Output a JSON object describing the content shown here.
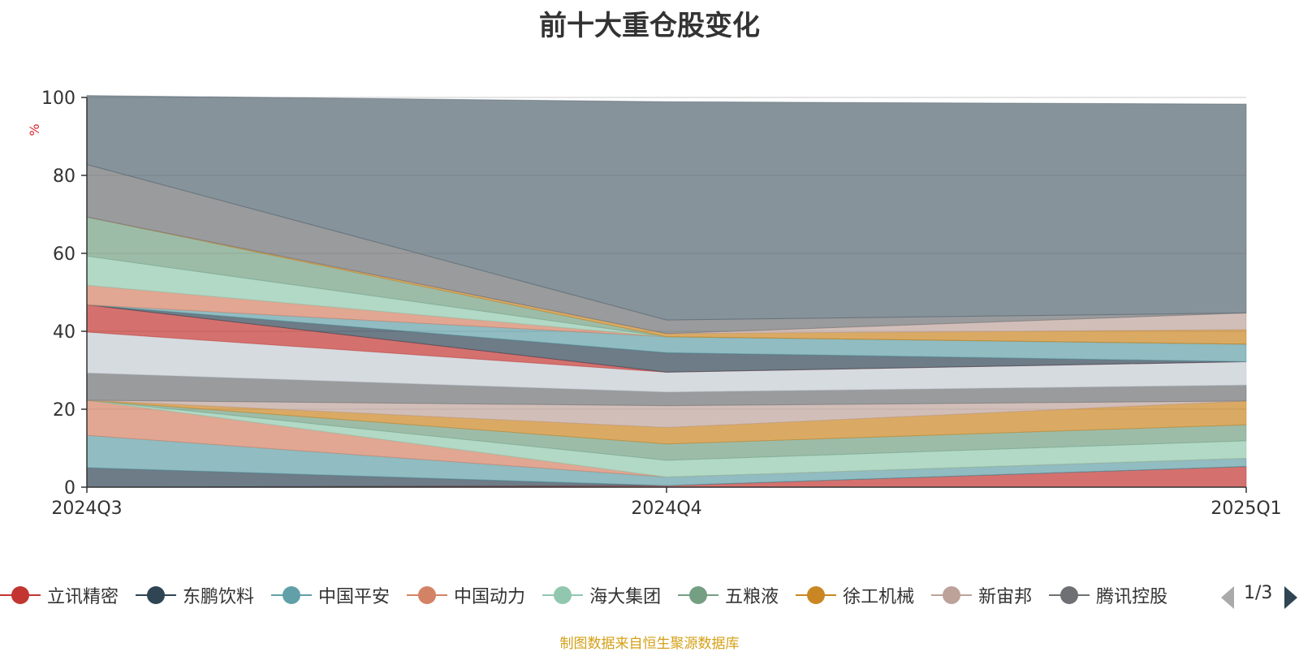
{
  "title": "前十大重仓股变化",
  "source_text": "制图数据来自恒生聚源数据库",
  "pager": {
    "text": "1/3"
  },
  "colors": {
    "axis": "#333333",
    "grid": "#cccccc",
    "ylabel": "#e0262b",
    "source": "#d4a017"
  },
  "legend": [
    {
      "name": "立讯精密",
      "color": "#c23531"
    },
    {
      "name": "东鹏饮料",
      "color": "#2f4554"
    },
    {
      "name": "中国平安",
      "color": "#61a0a8"
    },
    {
      "name": "中国动力",
      "color": "#d48265"
    },
    {
      "name": "海大集团",
      "color": "#91c7ae"
    },
    {
      "name": "五粮液",
      "color": "#749f83"
    },
    {
      "name": "徐工机械",
      "color": "#ca8622"
    },
    {
      "name": "新宙邦",
      "color": "#bda29a"
    },
    {
      "name": "腾讯控股",
      "color": "#6e7074"
    }
  ],
  "chart_data": {
    "type": "area",
    "stacked": true,
    "x": [
      "2024Q3",
      "2024Q4",
      "2025Q1"
    ],
    "ylabel": "%",
    "ylim": [
      0,
      100
    ],
    "yticks": [
      0,
      20,
      40,
      60,
      80,
      100
    ],
    "grid": true,
    "legend_position": "bottom",
    "series": [
      {
        "name": "立讯精密",
        "color": "#c23531",
        "values": [
          0.0,
          0.4,
          5.3
        ]
      },
      {
        "name": "东鹏饮料",
        "color": "#2f4554",
        "values": [
          5.0,
          0.0,
          0.0
        ]
      },
      {
        "name": "中国平安",
        "color": "#61a0a8",
        "values": [
          8.3,
          2.2,
          2.1
        ]
      },
      {
        "name": "中国动力",
        "color": "#d48265",
        "values": [
          9.0,
          0.0,
          0.0
        ]
      },
      {
        "name": "海大集团",
        "color": "#91c7ae",
        "values": [
          0.0,
          4.3,
          4.5
        ]
      },
      {
        "name": "五粮液",
        "color": "#749f83",
        "values": [
          0.0,
          4.2,
          4.1
        ]
      },
      {
        "name": "徐工机械",
        "color": "#ca8622",
        "values": [
          0.0,
          4.2,
          6.1
        ]
      },
      {
        "name": "新宙邦",
        "color": "#bda29a",
        "values": [
          0.0,
          5.6,
          0.0
        ]
      },
      {
        "name": "腾讯控股",
        "color": "#6e7074",
        "values": [
          7.0,
          3.5,
          4.1
        ]
      },
      {
        "name": "",
        "color": "#c4ccd3",
        "values": [
          10.5,
          5.1,
          6.0
        ]
      },
      {
        "name": "",
        "color": "#c23531",
        "values": [
          7.0,
          0.0,
          0.0
        ]
      },
      {
        "name": "",
        "color": "#2f4554",
        "values": [
          0.0,
          5.0,
          0.0
        ]
      },
      {
        "name": "",
        "color": "#61a0a8",
        "values": [
          0.0,
          4.1,
          4.5
        ]
      },
      {
        "name": "",
        "color": "#d48265",
        "values": [
          5.0,
          0.0,
          0.0
        ]
      },
      {
        "name": "",
        "color": "#91c7ae",
        "values": [
          7.5,
          0.0,
          0.0
        ]
      },
      {
        "name": "",
        "color": "#749f83",
        "values": [
          10.0,
          0.0,
          0.0
        ]
      },
      {
        "name": "",
        "color": "#ca8622",
        "values": [
          0.0,
          0.8,
          3.7
        ]
      },
      {
        "name": "",
        "color": "#bda29a",
        "values": [
          0.0,
          0.0,
          4.3
        ]
      },
      {
        "name": "",
        "color": "#6e7074",
        "values": [
          13.5,
          3.5,
          0.0
        ]
      },
      {
        "name": "",
        "color": "#546570",
        "values": [
          17.7,
          56.0,
          53.6
        ]
      }
    ]
  }
}
